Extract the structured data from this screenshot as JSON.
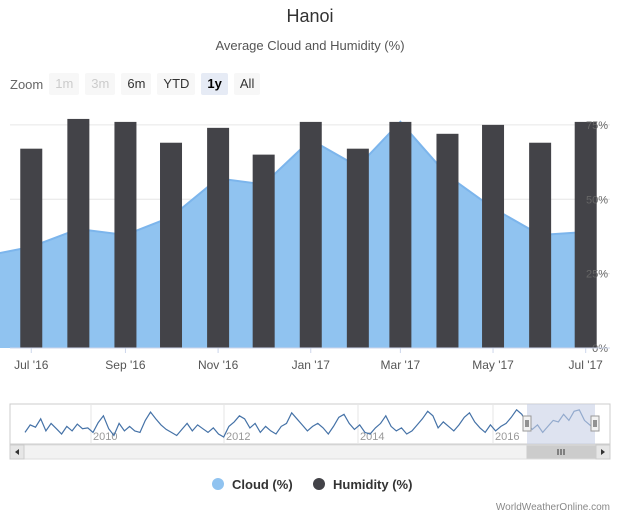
{
  "title": "Hanoi",
  "subtitle": "Average Cloud and Humidity (%)",
  "zoom": {
    "label": "Zoom",
    "buttons": [
      "1m",
      "3m",
      "6m",
      "YTD",
      "1y",
      "All"
    ],
    "disabled": [
      "1m",
      "3m"
    ],
    "selected": "1y"
  },
  "watermark": "WorldWeatherOnline.com",
  "colors": {
    "cloud": "#90c3f0",
    "cloud_line": "#7cb5ec",
    "humidity": "#434348",
    "navigator_line": "#4572a7",
    "navigator_mask": "#c8d1e6"
  },
  "chart_data": {
    "type": "bar",
    "x_tick_labels": [
      "Jul '16",
      "Sep '16",
      "Nov '16",
      "Jan '17",
      "Mar '17",
      "May '17",
      "Jul '17"
    ],
    "y_tick_labels": [
      "0%",
      "25%",
      "50%",
      "75%"
    ],
    "ylim": [
      0,
      80
    ],
    "series": [
      {
        "name": "Cloud (%)",
        "type": "area",
        "x": [
          "2016-06-01",
          "2016-07-01",
          "2016-08-01",
          "2016-09-01",
          "2016-10-01",
          "2016-11-01",
          "2016-12-01",
          "2017-01-01",
          "2017-02-01",
          "2017-03-01",
          "2017-04-01",
          "2017-05-01",
          "2017-06-01",
          "2017-07-01"
        ],
        "values": [
          31,
          34,
          40,
          38,
          44,
          57,
          55,
          70,
          61,
          76,
          58,
          47,
          38,
          39
        ]
      },
      {
        "name": "Humidity (%)",
        "type": "column",
        "x": [
          "2016-07-01",
          "2016-08-01",
          "2016-09-01",
          "2016-10-01",
          "2016-11-01",
          "2016-12-01",
          "2017-01-01",
          "2017-02-01",
          "2017-03-01",
          "2017-04-01",
          "2017-05-01",
          "2017-06-01",
          "2017-07-01"
        ],
        "values": [
          67,
          77,
          76,
          69,
          74,
          65,
          76,
          67,
          76,
          72,
          75,
          69,
          76
        ]
      }
    ],
    "navigator": {
      "x_tick_labels": [
        "2010",
        "2012",
        "2014",
        "2016"
      ],
      "values": [
        50,
        60,
        57,
        68,
        52,
        62,
        55,
        48,
        58,
        52,
        61,
        55,
        56,
        50,
        63,
        72,
        55,
        46,
        62,
        52,
        58,
        52,
        50,
        66,
        77,
        68,
        60,
        54,
        50,
        46,
        54,
        62,
        52,
        60,
        55,
        50,
        56,
        48,
        44,
        58,
        64,
        72,
        68,
        56,
        62,
        50,
        58,
        52,
        48,
        58,
        62,
        76,
        68,
        60,
        52,
        58,
        62,
        56,
        48,
        58,
        70,
        74,
        62,
        54,
        60,
        50,
        48,
        56,
        62,
        72,
        58,
        52,
        56,
        48,
        52,
        60,
        68,
        78,
        72,
        56,
        64,
        58,
        52,
        60,
        70,
        76,
        64,
        56,
        50,
        60,
        52,
        58,
        62,
        70,
        80,
        74,
        62,
        54,
        60,
        50,
        58,
        66,
        64,
        74,
        66,
        78,
        80,
        66,
        60,
        54
      ]
    },
    "legend": {
      "position": "bottom-center",
      "items": [
        "Cloud (%)",
        "Humidity (%)"
      ]
    },
    "grid": true
  }
}
